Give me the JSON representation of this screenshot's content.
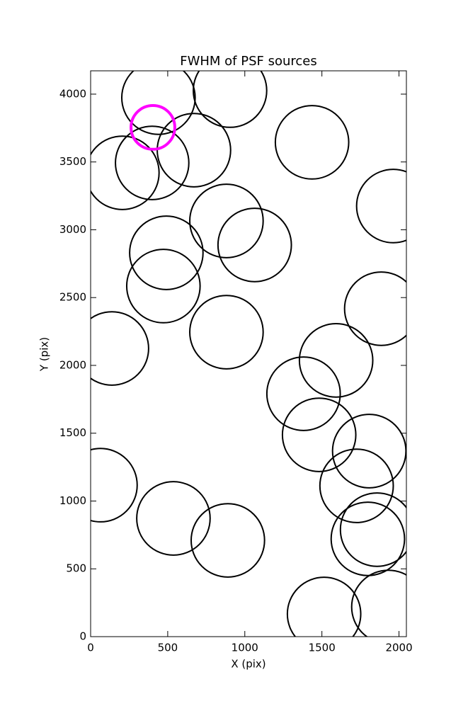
{
  "chart_data": {
    "type": "scatter",
    "title": "FWHM of PSF sources",
    "xlabel": "X (pix)",
    "ylabel": "Y (pix)",
    "xlim": [
      0,
      2048
    ],
    "xticks": [
      0,
      500,
      1000,
      1500,
      2000
    ],
    "ylim": [
      0,
      4172
    ],
    "yticks": [
      0,
      500,
      1000,
      1500,
      2000,
      2500,
      3000,
      3500,
      4000
    ],
    "series": [
      {
        "color": "#000000",
        "x": [
          440,
          904,
          399,
          206,
          670,
          1436,
          1963,
          881,
          1064,
          491,
          472,
          138,
          881,
          1885,
          1592,
          1381,
          1482,
          1807,
          1725,
          64,
          537,
          890,
          1858,
          1798,
          1514,
          1931
        ],
        "values": [
          3974,
          4026,
          3493,
          3420,
          3587,
          3645,
          3175,
          3065,
          2888,
          2830,
          2585,
          2125,
          2245,
          2418,
          2037,
          1791,
          1488,
          1368,
          1112,
          1117,
          872,
          710,
          789,
          721,
          167,
          219
        ],
        "sizes": [
          238,
          238,
          238,
          238,
          238,
          238,
          238,
          238,
          238,
          238,
          238,
          238,
          238,
          238,
          238,
          238,
          238,
          238,
          238,
          238,
          238,
          238,
          238,
          238,
          238,
          238
        ]
      },
      {
        "color": "#ff00ff",
        "x": [
          404
        ],
        "values": [
          3755
        ],
        "sizes": [
          142
        ]
      }
    ]
  }
}
